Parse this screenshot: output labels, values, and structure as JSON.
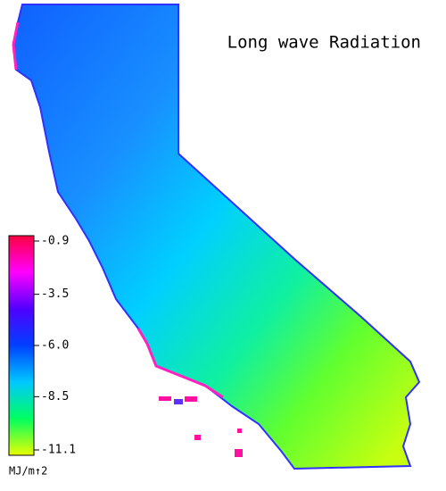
{
  "map": {
    "title": "Long wave Radiation",
    "colorbar": {
      "lim": [
        -0.9,
        -11.1
      ],
      "ticks": [
        -0.9,
        -3.5,
        {
          "value": -6,
          "label": "-6.0"
        },
        -8.5,
        -11.1
      ],
      "unit": "MJ/m↑2",
      "colormap": [
        "#ff0040",
        "#ff00ff",
        "#5000ff",
        "#0040ff",
        "#00c8ff",
        "#00ff60",
        "#e8ff00"
      ]
    }
  }
}
